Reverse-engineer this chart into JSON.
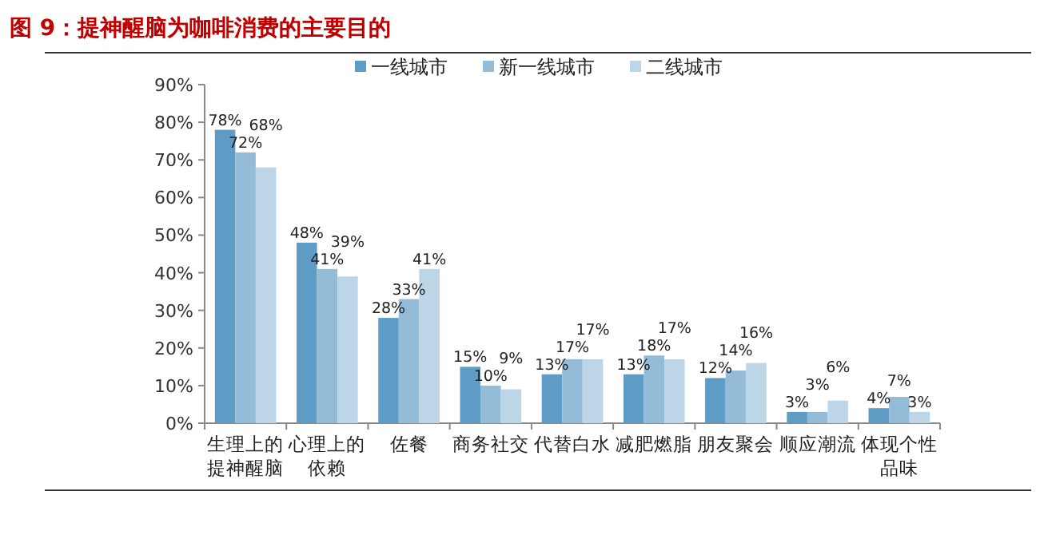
{
  "chart_data": {
    "type": "bar",
    "title": "图 9：提神醒脑为咖啡消费的主要目的",
    "categories": [
      "生理上的提神醒脑",
      "心理上的依赖",
      "佐餐",
      "商务社交",
      "代替白水",
      "减肥燃脂",
      "朋友聚会",
      "顺应潮流",
      "体现个性品味"
    ],
    "series": [
      {
        "name": "一线城市",
        "color": "#5e9cc6",
        "values": [
          78,
          48,
          28,
          15,
          13,
          13,
          12,
          3,
          4
        ],
        "value_labels": [
          "78%",
          "48%",
          "28%",
          "15%",
          "13%",
          "13%",
          "12%",
          "3%",
          "4%"
        ]
      },
      {
        "name": "新一线城市",
        "color": "#94bcd9",
        "values": [
          72,
          41,
          33,
          10,
          17,
          18,
          14,
          3,
          7
        ],
        "value_labels": [
          "72%",
          "41%",
          "33%",
          "10%",
          "17%",
          "18%",
          "14%",
          "3%",
          "7%"
        ]
      },
      {
        "name": "二线城市",
        "color": "#bcd5e7",
        "values": [
          68,
          39,
          41,
          9,
          17,
          17,
          16,
          6,
          3
        ],
        "value_labels": [
          "68%",
          "39%",
          "41%",
          "9%",
          "17%",
          "17%",
          "16%",
          "6%",
          "3%"
        ]
      }
    ],
    "ylim": [
      0,
      90
    ],
    "yticks": [
      {
        "value": 0,
        "label": "0%"
      },
      {
        "value": 10,
        "label": "10%"
      },
      {
        "value": 20,
        "label": "20%"
      },
      {
        "value": 30,
        "label": "30%"
      },
      {
        "value": 40,
        "label": "40%"
      },
      {
        "value": 50,
        "label": "50%"
      },
      {
        "value": 60,
        "label": "60%"
      },
      {
        "value": 70,
        "label": "70%"
      },
      {
        "value": 80,
        "label": "80%"
      },
      {
        "value": 90,
        "label": "90%"
      }
    ],
    "legend": "top",
    "grid": false
  }
}
